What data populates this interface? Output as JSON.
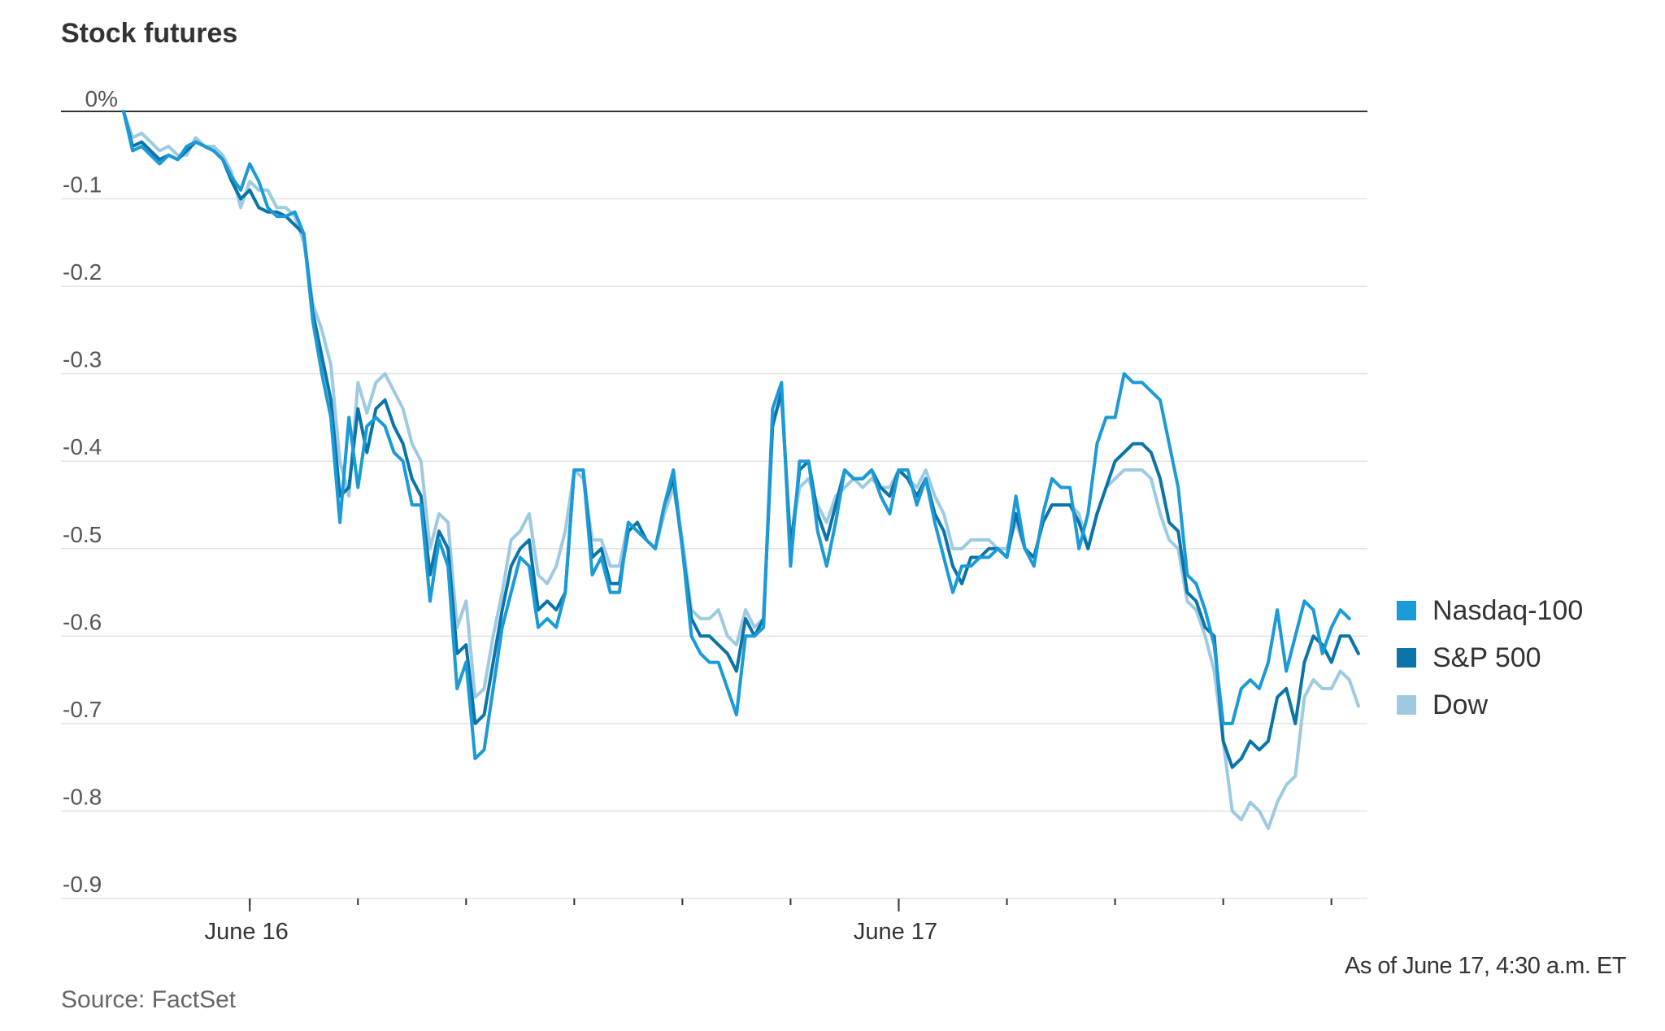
{
  "title": "Stock futures",
  "source": "Source: FactSet",
  "note": "As of June 17, 4:30 a.m. ET",
  "chart_data": {
    "type": "line",
    "title": "Stock futures",
    "xlabel": "",
    "ylabel": "",
    "x_labels": [
      {
        "label": "June 16",
        "index": 14
      },
      {
        "label": "June 17",
        "index": 86
      }
    ],
    "x_minor_ticks": [
      14,
      26,
      38,
      50,
      62,
      74,
      86,
      98,
      110,
      122,
      134
    ],
    "n_points": 139,
    "yticks": [
      {
        "value": 0,
        "label": "0%"
      },
      {
        "value": -0.1,
        "label": "-0.1"
      },
      {
        "value": -0.2,
        "label": "-0.2"
      },
      {
        "value": -0.3,
        "label": "-0.3"
      },
      {
        "value": -0.4,
        "label": "-0.4"
      },
      {
        "value": -0.5,
        "label": "-0.5"
      },
      {
        "value": -0.6,
        "label": "-0.6"
      },
      {
        "value": -0.7,
        "label": "-0.7"
      },
      {
        "value": -0.8,
        "label": "-0.8"
      },
      {
        "value": -0.9,
        "label": "-0.9"
      }
    ],
    "ylim": [
      -0.9,
      0
    ],
    "grid": true,
    "legend": "right",
    "series": [
      {
        "name": "Dow",
        "color": "#9ecae1",
        "values": [
          0,
          -0.03,
          -0.025,
          -0.035,
          -0.045,
          -0.04,
          -0.05,
          -0.05,
          -0.03,
          -0.04,
          -0.04,
          -0.05,
          -0.07,
          -0.11,
          -0.08,
          -0.09,
          -0.09,
          -0.11,
          -0.11,
          -0.12,
          -0.15,
          -0.22,
          -0.25,
          -0.29,
          -0.4,
          -0.44,
          -0.31,
          -0.345,
          -0.31,
          -0.3,
          -0.32,
          -0.34,
          -0.38,
          -0.4,
          -0.5,
          -0.46,
          -0.47,
          -0.59,
          -0.56,
          -0.67,
          -0.66,
          -0.6,
          -0.55,
          -0.49,
          -0.48,
          -0.46,
          -0.53,
          -0.54,
          -0.52,
          -0.48,
          -0.41,
          -0.42,
          -0.49,
          -0.49,
          -0.52,
          -0.52,
          -0.47,
          -0.48,
          -0.49,
          -0.5,
          -0.46,
          -0.43,
          -0.49,
          -0.57,
          -0.58,
          -0.58,
          -0.57,
          -0.6,
          -0.61,
          -0.57,
          -0.59,
          -0.58,
          -0.35,
          -0.33,
          -0.49,
          -0.43,
          -0.42,
          -0.45,
          -0.47,
          -0.44,
          -0.43,
          -0.42,
          -0.43,
          -0.42,
          -0.43,
          -0.43,
          -0.41,
          -0.42,
          -0.43,
          -0.41,
          -0.44,
          -0.46,
          -0.5,
          -0.5,
          -0.49,
          -0.49,
          -0.49,
          -0.5,
          -0.5,
          -0.47,
          -0.5,
          -0.51,
          -0.47,
          -0.45,
          -0.45,
          -0.45,
          -0.46,
          -0.5,
          -0.46,
          -0.43,
          -0.42,
          -0.41,
          -0.41,
          -0.41,
          -0.42,
          -0.46,
          -0.49,
          -0.5,
          -0.56,
          -0.57,
          -0.6,
          -0.64,
          -0.72,
          -0.8,
          -0.81,
          -0.79,
          -0.8,
          -0.82,
          -0.79,
          -0.77,
          -0.76,
          -0.67,
          -0.65,
          -0.66,
          -0.66,
          -0.64,
          -0.65,
          -0.68
        ]
      },
      {
        "name": "S&P 500",
        "color": "#0a74a8",
        "values": [
          0,
          -0.04,
          -0.035,
          -0.045,
          -0.055,
          -0.05,
          -0.055,
          -0.045,
          -0.035,
          -0.04,
          -0.045,
          -0.055,
          -0.08,
          -0.1,
          -0.09,
          -0.11,
          -0.115,
          -0.115,
          -0.12,
          -0.13,
          -0.14,
          -0.23,
          -0.28,
          -0.33,
          -0.44,
          -0.43,
          -0.34,
          -0.39,
          -0.34,
          -0.33,
          -0.36,
          -0.38,
          -0.42,
          -0.44,
          -0.53,
          -0.48,
          -0.5,
          -0.62,
          -0.61,
          -0.7,
          -0.69,
          -0.63,
          -0.57,
          -0.52,
          -0.5,
          -0.49,
          -0.57,
          -0.56,
          -0.57,
          -0.55,
          -0.41,
          -0.41,
          -0.51,
          -0.5,
          -0.54,
          -0.54,
          -0.48,
          -0.47,
          -0.49,
          -0.5,
          -0.45,
          -0.42,
          -0.5,
          -0.58,
          -0.6,
          -0.6,
          -0.61,
          -0.62,
          -0.64,
          -0.58,
          -0.6,
          -0.58,
          -0.36,
          -0.32,
          -0.5,
          -0.41,
          -0.4,
          -0.46,
          -0.49,
          -0.45,
          -0.41,
          -0.42,
          -0.42,
          -0.41,
          -0.43,
          -0.44,
          -0.41,
          -0.42,
          -0.44,
          -0.42,
          -0.46,
          -0.48,
          -0.52,
          -0.54,
          -0.51,
          -0.51,
          -0.5,
          -0.5,
          -0.51,
          -0.46,
          -0.5,
          -0.51,
          -0.47,
          -0.45,
          -0.45,
          -0.45,
          -0.47,
          -0.5,
          -0.46,
          -0.43,
          -0.4,
          -0.39,
          -0.38,
          -0.38,
          -0.39,
          -0.42,
          -0.47,
          -0.48,
          -0.55,
          -0.56,
          -0.59,
          -0.6,
          -0.72,
          -0.75,
          -0.74,
          -0.72,
          -0.73,
          -0.72,
          -0.67,
          -0.66,
          -0.7,
          -0.63,
          -0.6,
          -0.61,
          -0.63,
          -0.6,
          -0.6,
          -0.62
        ]
      },
      {
        "name": "Nasdaq-100",
        "color": "#1a9ad6",
        "values": [
          0,
          -0.045,
          -0.04,
          -0.05,
          -0.06,
          -0.05,
          -0.055,
          -0.04,
          -0.035,
          -0.04,
          -0.045,
          -0.055,
          -0.075,
          -0.09,
          -0.06,
          -0.08,
          -0.11,
          -0.12,
          -0.12,
          -0.115,
          -0.14,
          -0.24,
          -0.3,
          -0.35,
          -0.47,
          -0.35,
          -0.43,
          -0.36,
          -0.35,
          -0.36,
          -0.39,
          -0.4,
          -0.45,
          -0.45,
          -0.56,
          -0.49,
          -0.52,
          -0.66,
          -0.63,
          -0.74,
          -0.73,
          -0.66,
          -0.59,
          -0.55,
          -0.51,
          -0.52,
          -0.59,
          -0.58,
          -0.59,
          -0.55,
          -0.41,
          -0.41,
          -0.53,
          -0.51,
          -0.55,
          -0.55,
          -0.47,
          -0.48,
          -0.49,
          -0.5,
          -0.45,
          -0.41,
          -0.5,
          -0.6,
          -0.62,
          -0.63,
          -0.63,
          -0.66,
          -0.69,
          -0.6,
          -0.6,
          -0.59,
          -0.34,
          -0.31,
          -0.52,
          -0.4,
          -0.4,
          -0.48,
          -0.52,
          -0.47,
          -0.41,
          -0.42,
          -0.42,
          -0.41,
          -0.44,
          -0.46,
          -0.41,
          -0.41,
          -0.45,
          -0.42,
          -0.47,
          -0.51,
          -0.55,
          -0.52,
          -0.52,
          -0.51,
          -0.51,
          -0.5,
          -0.51,
          -0.44,
          -0.5,
          -0.52,
          -0.46,
          -0.42,
          -0.43,
          -0.43,
          -0.5,
          -0.46,
          -0.38,
          -0.35,
          -0.35,
          -0.3,
          -0.31,
          -0.31,
          -0.32,
          -0.33,
          -0.38,
          -0.43,
          -0.53,
          -0.54,
          -0.57,
          -0.61,
          -0.7,
          -0.7,
          -0.66,
          -0.65,
          -0.66,
          -0.63,
          -0.57,
          -0.64,
          -0.6,
          -0.56,
          -0.57,
          -0.62,
          -0.59,
          -0.57,
          -0.58
        ]
      }
    ]
  },
  "legend": {
    "items": [
      {
        "label": "Nasdaq-100",
        "color": "#1a9ad6"
      },
      {
        "label": "S&P 500",
        "color": "#0a74a8"
      },
      {
        "label": "Dow",
        "color": "#9ecae1"
      }
    ]
  }
}
